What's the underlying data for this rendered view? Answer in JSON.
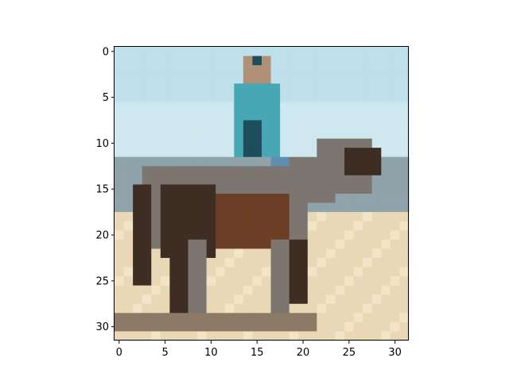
{
  "plot": {
    "image_size": [
      32,
      32
    ],
    "x_ticks": [
      {
        "value": 0,
        "label": "0"
      },
      {
        "value": 5,
        "label": "5"
      },
      {
        "value": 10,
        "label": "10"
      },
      {
        "value": 15,
        "label": "15"
      },
      {
        "value": 20,
        "label": "20"
      },
      {
        "value": 25,
        "label": "25"
      },
      {
        "value": 30,
        "label": "30"
      }
    ],
    "y_ticks": [
      {
        "value": 0,
        "label": "0"
      },
      {
        "value": 5,
        "label": "5"
      },
      {
        "value": 10,
        "label": "10"
      },
      {
        "value": 15,
        "label": "15"
      },
      {
        "value": 20,
        "label": "20"
      },
      {
        "value": 25,
        "label": "25"
      },
      {
        "value": 30,
        "label": "30"
      }
    ],
    "colors": {
      "sky_top": "#bde0ea",
      "sky_low": "#cfe7ee",
      "horizon": "#8fa3ab",
      "ground": "#e9d8b6",
      "ground_light": "#f2e4c6",
      "horse_dark": "#3e2d22",
      "horse_brown": "#6a3f25",
      "horse_grey": "#7d7670",
      "rider_shirt": "#47a7b5",
      "rider_dark": "#1d4d5a",
      "rider_pants": "#5f8fb0",
      "skin": "#b09076",
      "fence": "#8c7a66"
    }
  }
}
